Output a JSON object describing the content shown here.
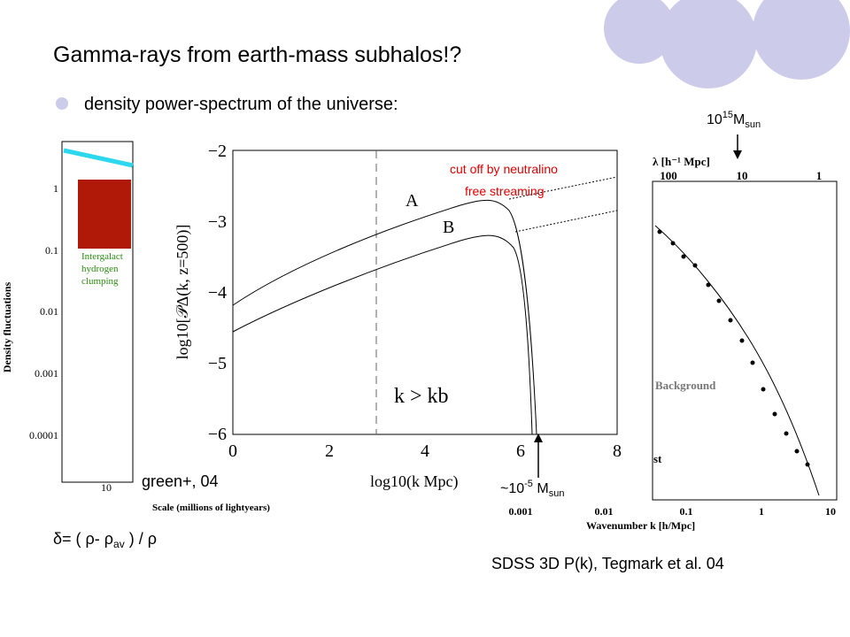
{
  "header": {
    "title": "Gamma-rays from earth-mass subhalos!?",
    "bullet": "density power-spectrum of the universe:"
  },
  "left_plot": {
    "ylabel": "Density fluctuations",
    "yticks": [
      "1",
      "0.1",
      "0.01",
      "0.001",
      "0.0001"
    ],
    "xticks": [
      "10"
    ],
    "xlabel": "Scale (millions of lightyears)",
    "inset": [
      "Intergalact",
      "hydrogen",
      "clumping"
    ],
    "credit": "green+, 04"
  },
  "center_plot": {
    "ylabel": "log10[𝒫Δ(k, z=500)]",
    "yticks": [
      "−2",
      "−3",
      "−4",
      "−5",
      "−6"
    ],
    "xticks": [
      "0",
      "2",
      "4",
      "6",
      "8"
    ],
    "xlabel": "log10(k Mpc)",
    "curves": [
      "A",
      "B"
    ],
    "region": "k > kb",
    "cutoff": [
      "cut off by neutralino",
      "free streaming"
    ],
    "mass_low": {
      "base": "~10",
      "exp": "-5",
      "unit": " M",
      "sub": "sun"
    }
  },
  "right_plot": {
    "top_label": "λ [h⁻¹ Mpc]",
    "top_ticks": [
      "100",
      "10",
      "1"
    ],
    "xticks": [
      "0.001",
      "0.01",
      "0.1",
      "1",
      "10"
    ],
    "xlabel": "Wavenumber k [h/Mpc]",
    "notes": [
      "Background",
      "st"
    ],
    "mass_high": {
      "base": "10",
      "exp": "15",
      "unit": "M",
      "sub": "sun"
    },
    "credit": "SDSS 3D P(k), Tegmark et al. 04"
  },
  "formula": {
    "a": "δ= ( ρ- ρ",
    "sub": "av",
    "b": " ) / ρ"
  }
}
